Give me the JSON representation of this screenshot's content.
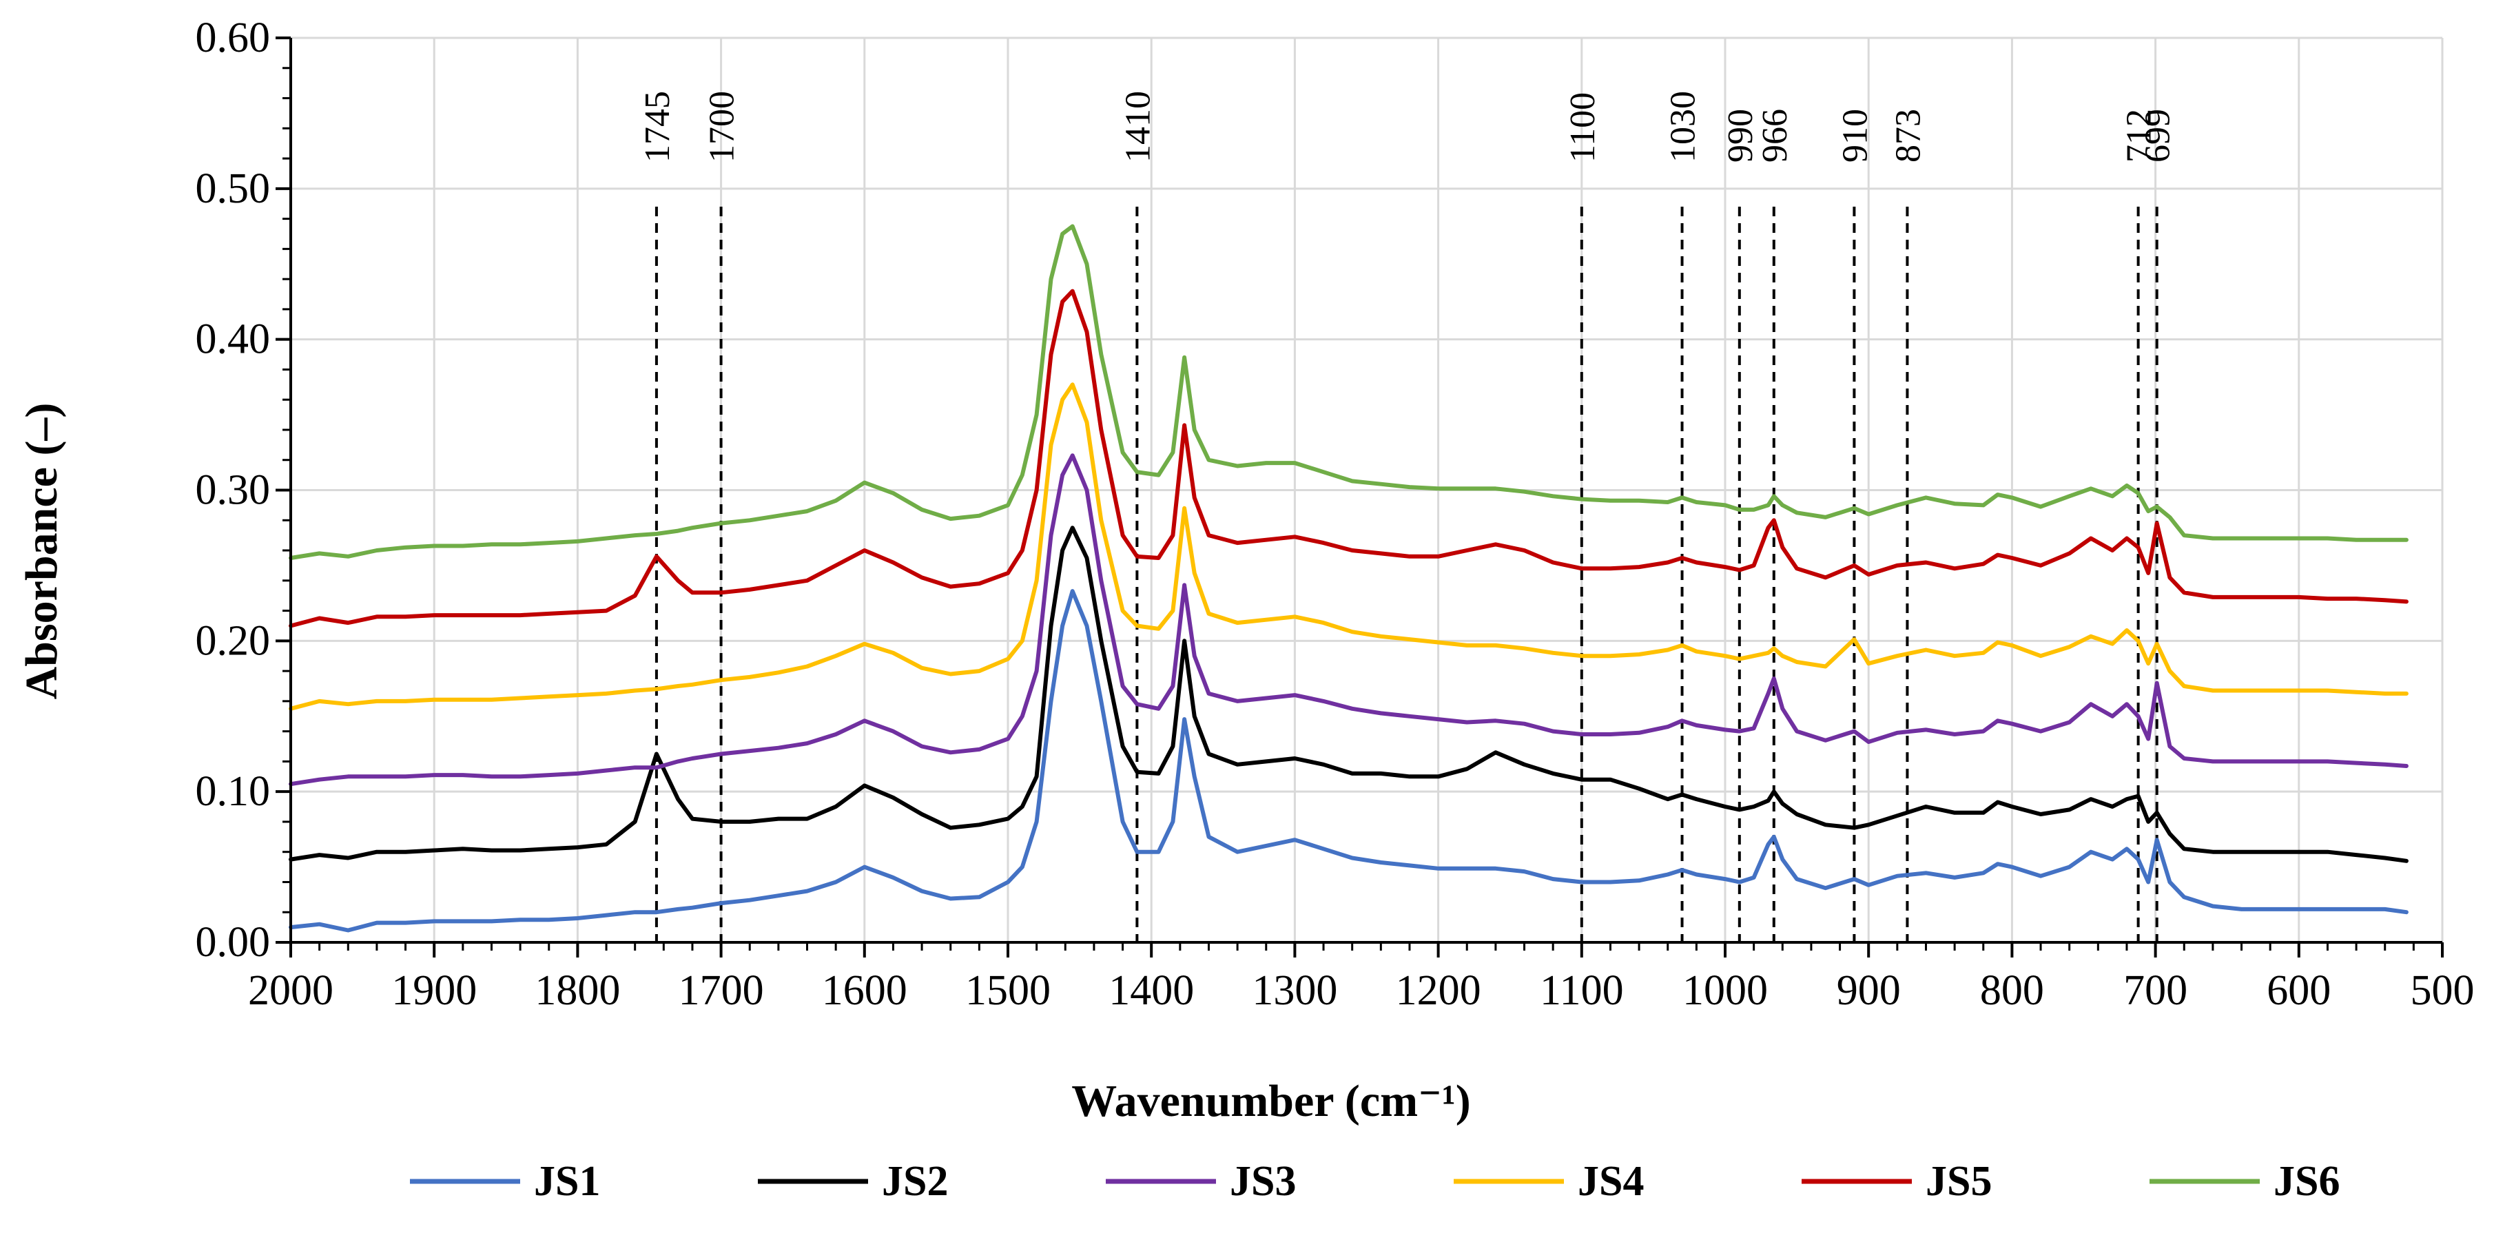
{
  "chart_data": {
    "type": "line",
    "xlabel": "Wavenumber (cm⁻¹)",
    "ylabel": "Absorbance (–)",
    "xlim": [
      2000,
      500
    ],
    "x_reversed": true,
    "ylim": [
      0,
      0.6
    ],
    "xticks": [
      2000,
      1900,
      1800,
      1700,
      1600,
      1500,
      1400,
      1300,
      1200,
      1100,
      1000,
      900,
      800,
      700,
      600,
      500
    ],
    "xtick_labels": [
      "2000",
      "1900",
      "1800",
      "1700",
      "1600",
      "1500",
      "1400",
      "1300",
      "1200",
      "1100",
      "1000",
      "900",
      "800",
      "700",
      "600",
      "500"
    ],
    "yticks": [
      0,
      0.1,
      0.2,
      0.3,
      0.4,
      0.5,
      0.6
    ],
    "ytick_labels": [
      "0.00",
      "0.10",
      "0.20",
      "0.30",
      "0.40",
      "0.50",
      "0.60"
    ],
    "grid": true,
    "legend_position": "bottom",
    "annotations": [
      {
        "x": 1745,
        "label": "1745"
      },
      {
        "x": 1700,
        "label": "1700"
      },
      {
        "x": 1410,
        "label": "1410"
      },
      {
        "x": 1100,
        "label": "1100"
      },
      {
        "x": 1030,
        "label": "1030"
      },
      {
        "x": 990,
        "label": "990"
      },
      {
        "x": 966,
        "label": "966"
      },
      {
        "x": 910,
        "label": "910"
      },
      {
        "x": 873,
        "label": "873"
      },
      {
        "x": 712,
        "label": "712"
      },
      {
        "x": 699,
        "label": "699"
      }
    ],
    "x": [
      2000,
      1980,
      1960,
      1940,
      1920,
      1900,
      1880,
      1860,
      1840,
      1820,
      1800,
      1780,
      1760,
      1745,
      1730,
      1720,
      1700,
      1680,
      1660,
      1640,
      1620,
      1600,
      1580,
      1560,
      1540,
      1520,
      1500,
      1490,
      1480,
      1470,
      1462,
      1455,
      1445,
      1435,
      1420,
      1410,
      1395,
      1385,
      1377,
      1370,
      1360,
      1340,
      1320,
      1300,
      1280,
      1260,
      1240,
      1220,
      1200,
      1180,
      1160,
      1140,
      1120,
      1100,
      1080,
      1060,
      1040,
      1030,
      1020,
      1000,
      990,
      980,
      970,
      966,
      960,
      950,
      930,
      910,
      900,
      880,
      860,
      840,
      820,
      810,
      800,
      780,
      760,
      745,
      730,
      720,
      712,
      705,
      699,
      690,
      680,
      660,
      640,
      620,
      600,
      580,
      560,
      540,
      525
    ],
    "series": [
      {
        "name": "JS1",
        "color": "#4472C4",
        "values": [
          0.01,
          0.012,
          0.008,
          0.013,
          0.013,
          0.014,
          0.014,
          0.014,
          0.015,
          0.015,
          0.016,
          0.018,
          0.02,
          0.02,
          0.022,
          0.023,
          0.026,
          0.028,
          0.031,
          0.034,
          0.04,
          0.05,
          0.043,
          0.034,
          0.029,
          0.03,
          0.04,
          0.05,
          0.08,
          0.16,
          0.21,
          0.233,
          0.21,
          0.16,
          0.08,
          0.06,
          0.06,
          0.08,
          0.148,
          0.11,
          0.07,
          0.06,
          0.064,
          0.068,
          0.062,
          0.056,
          0.053,
          0.051,
          0.049,
          0.049,
          0.049,
          0.047,
          0.042,
          0.04,
          0.04,
          0.041,
          0.045,
          0.048,
          0.045,
          0.042,
          0.04,
          0.043,
          0.065,
          0.07,
          0.055,
          0.042,
          0.036,
          0.042,
          0.038,
          0.044,
          0.046,
          0.043,
          0.046,
          0.052,
          0.05,
          0.044,
          0.05,
          0.06,
          0.055,
          0.062,
          0.055,
          0.04,
          0.068,
          0.04,
          0.03,
          0.024,
          0.022,
          0.022,
          0.022,
          0.022,
          0.022,
          0.022,
          0.02
        ]
      },
      {
        "name": "JS2",
        "color": "#000000",
        "values": [
          0.055,
          0.058,
          0.056,
          0.06,
          0.06,
          0.061,
          0.062,
          0.061,
          0.061,
          0.062,
          0.063,
          0.065,
          0.08,
          0.125,
          0.095,
          0.082,
          0.08,
          0.08,
          0.082,
          0.082,
          0.09,
          0.104,
          0.096,
          0.085,
          0.076,
          0.078,
          0.082,
          0.09,
          0.11,
          0.21,
          0.26,
          0.275,
          0.255,
          0.2,
          0.13,
          0.113,
          0.112,
          0.13,
          0.2,
          0.15,
          0.125,
          0.118,
          0.12,
          0.122,
          0.118,
          0.112,
          0.112,
          0.11,
          0.11,
          0.115,
          0.126,
          0.118,
          0.112,
          0.108,
          0.108,
          0.102,
          0.095,
          0.098,
          0.095,
          0.09,
          0.088,
          0.09,
          0.094,
          0.1,
          0.092,
          0.085,
          0.078,
          0.076,
          0.078,
          0.084,
          0.09,
          0.086,
          0.086,
          0.093,
          0.09,
          0.085,
          0.088,
          0.095,
          0.09,
          0.095,
          0.097,
          0.08,
          0.086,
          0.072,
          0.062,
          0.06,
          0.06,
          0.06,
          0.06,
          0.06,
          0.058,
          0.056,
          0.054
        ]
      },
      {
        "name": "JS3",
        "color": "#7030A0",
        "values": [
          0.105,
          0.108,
          0.11,
          0.11,
          0.11,
          0.111,
          0.111,
          0.11,
          0.11,
          0.111,
          0.112,
          0.114,
          0.116,
          0.116,
          0.12,
          0.122,
          0.125,
          0.127,
          0.129,
          0.132,
          0.138,
          0.147,
          0.14,
          0.13,
          0.126,
          0.128,
          0.135,
          0.15,
          0.18,
          0.27,
          0.31,
          0.323,
          0.3,
          0.24,
          0.17,
          0.158,
          0.155,
          0.17,
          0.237,
          0.19,
          0.165,
          0.16,
          0.162,
          0.164,
          0.16,
          0.155,
          0.152,
          0.15,
          0.148,
          0.146,
          0.147,
          0.145,
          0.14,
          0.138,
          0.138,
          0.139,
          0.143,
          0.147,
          0.144,
          0.141,
          0.14,
          0.142,
          0.165,
          0.175,
          0.155,
          0.14,
          0.134,
          0.14,
          0.133,
          0.139,
          0.141,
          0.138,
          0.14,
          0.147,
          0.145,
          0.14,
          0.146,
          0.158,
          0.15,
          0.158,
          0.15,
          0.135,
          0.172,
          0.13,
          0.122,
          0.12,
          0.12,
          0.12,
          0.12,
          0.12,
          0.119,
          0.118,
          0.117
        ]
      },
      {
        "name": "JS4",
        "color": "#FFC000",
        "values": [
          0.155,
          0.16,
          0.158,
          0.16,
          0.16,
          0.161,
          0.161,
          0.161,
          0.162,
          0.163,
          0.164,
          0.165,
          0.167,
          0.168,
          0.17,
          0.171,
          0.174,
          0.176,
          0.179,
          0.183,
          0.19,
          0.198,
          0.192,
          0.182,
          0.178,
          0.18,
          0.188,
          0.2,
          0.24,
          0.33,
          0.36,
          0.37,
          0.345,
          0.28,
          0.22,
          0.21,
          0.208,
          0.22,
          0.288,
          0.245,
          0.218,
          0.212,
          0.214,
          0.216,
          0.212,
          0.206,
          0.203,
          0.201,
          0.199,
          0.197,
          0.197,
          0.195,
          0.192,
          0.19,
          0.19,
          0.191,
          0.194,
          0.197,
          0.193,
          0.19,
          0.188,
          0.19,
          0.192,
          0.195,
          0.19,
          0.186,
          0.183,
          0.201,
          0.185,
          0.19,
          0.194,
          0.19,
          0.192,
          0.199,
          0.197,
          0.19,
          0.196,
          0.203,
          0.198,
          0.207,
          0.2,
          0.185,
          0.198,
          0.18,
          0.17,
          0.167,
          0.167,
          0.167,
          0.167,
          0.167,
          0.166,
          0.165,
          0.165
        ]
      },
      {
        "name": "JS5",
        "color": "#C00000",
        "values": [
          0.21,
          0.215,
          0.212,
          0.216,
          0.216,
          0.217,
          0.217,
          0.217,
          0.217,
          0.218,
          0.219,
          0.22,
          0.23,
          0.256,
          0.24,
          0.232,
          0.232,
          0.234,
          0.237,
          0.24,
          0.25,
          0.26,
          0.252,
          0.242,
          0.236,
          0.238,
          0.245,
          0.26,
          0.3,
          0.39,
          0.425,
          0.432,
          0.405,
          0.34,
          0.27,
          0.256,
          0.255,
          0.27,
          0.343,
          0.295,
          0.27,
          0.265,
          0.267,
          0.269,
          0.265,
          0.26,
          0.258,
          0.256,
          0.256,
          0.26,
          0.264,
          0.26,
          0.252,
          0.248,
          0.248,
          0.249,
          0.252,
          0.255,
          0.252,
          0.249,
          0.247,
          0.25,
          0.275,
          0.28,
          0.262,
          0.248,
          0.242,
          0.25,
          0.244,
          0.25,
          0.252,
          0.248,
          0.251,
          0.257,
          0.255,
          0.25,
          0.258,
          0.268,
          0.26,
          0.268,
          0.262,
          0.245,
          0.278,
          0.242,
          0.232,
          0.229,
          0.229,
          0.229,
          0.229,
          0.228,
          0.228,
          0.227,
          0.226
        ]
      },
      {
        "name": "JS6",
        "color": "#70AD47",
        "values": [
          0.255,
          0.258,
          0.256,
          0.26,
          0.262,
          0.263,
          0.263,
          0.264,
          0.264,
          0.265,
          0.266,
          0.268,
          0.27,
          0.271,
          0.273,
          0.275,
          0.278,
          0.28,
          0.283,
          0.286,
          0.293,
          0.305,
          0.298,
          0.287,
          0.281,
          0.283,
          0.29,
          0.31,
          0.35,
          0.44,
          0.47,
          0.475,
          0.45,
          0.39,
          0.325,
          0.312,
          0.31,
          0.325,
          0.388,
          0.34,
          0.32,
          0.316,
          0.318,
          0.318,
          0.312,
          0.306,
          0.304,
          0.302,
          0.301,
          0.301,
          0.301,
          0.299,
          0.296,
          0.294,
          0.293,
          0.293,
          0.292,
          0.295,
          0.292,
          0.29,
          0.287,
          0.287,
          0.29,
          0.296,
          0.29,
          0.285,
          0.282,
          0.288,
          0.284,
          0.29,
          0.295,
          0.291,
          0.29,
          0.297,
          0.295,
          0.289,
          0.296,
          0.301,
          0.296,
          0.303,
          0.298,
          0.286,
          0.289,
          0.282,
          0.27,
          0.268,
          0.268,
          0.268,
          0.268,
          0.268,
          0.267,
          0.267,
          0.267
        ]
      }
    ]
  }
}
